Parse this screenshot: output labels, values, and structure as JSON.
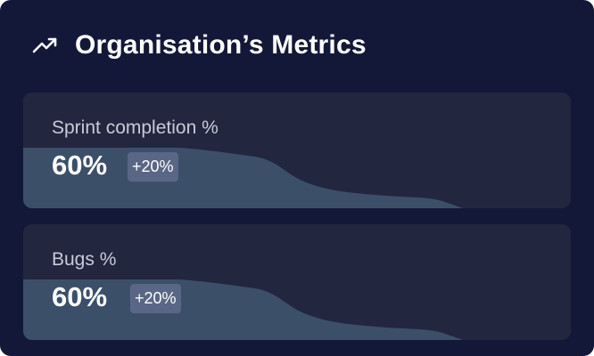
{
  "header": {
    "icon": "trend-up-icon",
    "title": "Organisation’s Metrics"
  },
  "metrics": [
    {
      "label": "Sprint completion %",
      "value": "60%",
      "change": "+20%"
    },
    {
      "label": "Bugs %",
      "value": "60%",
      "change": "+20%"
    }
  ],
  "colors": {
    "card_background": "#141838",
    "metric_background": "#22263f",
    "area_fill": "#3b4f69",
    "badge_background": "#5a6685",
    "label_text": "#c9cbd8",
    "value_text": "#ffffff"
  }
}
